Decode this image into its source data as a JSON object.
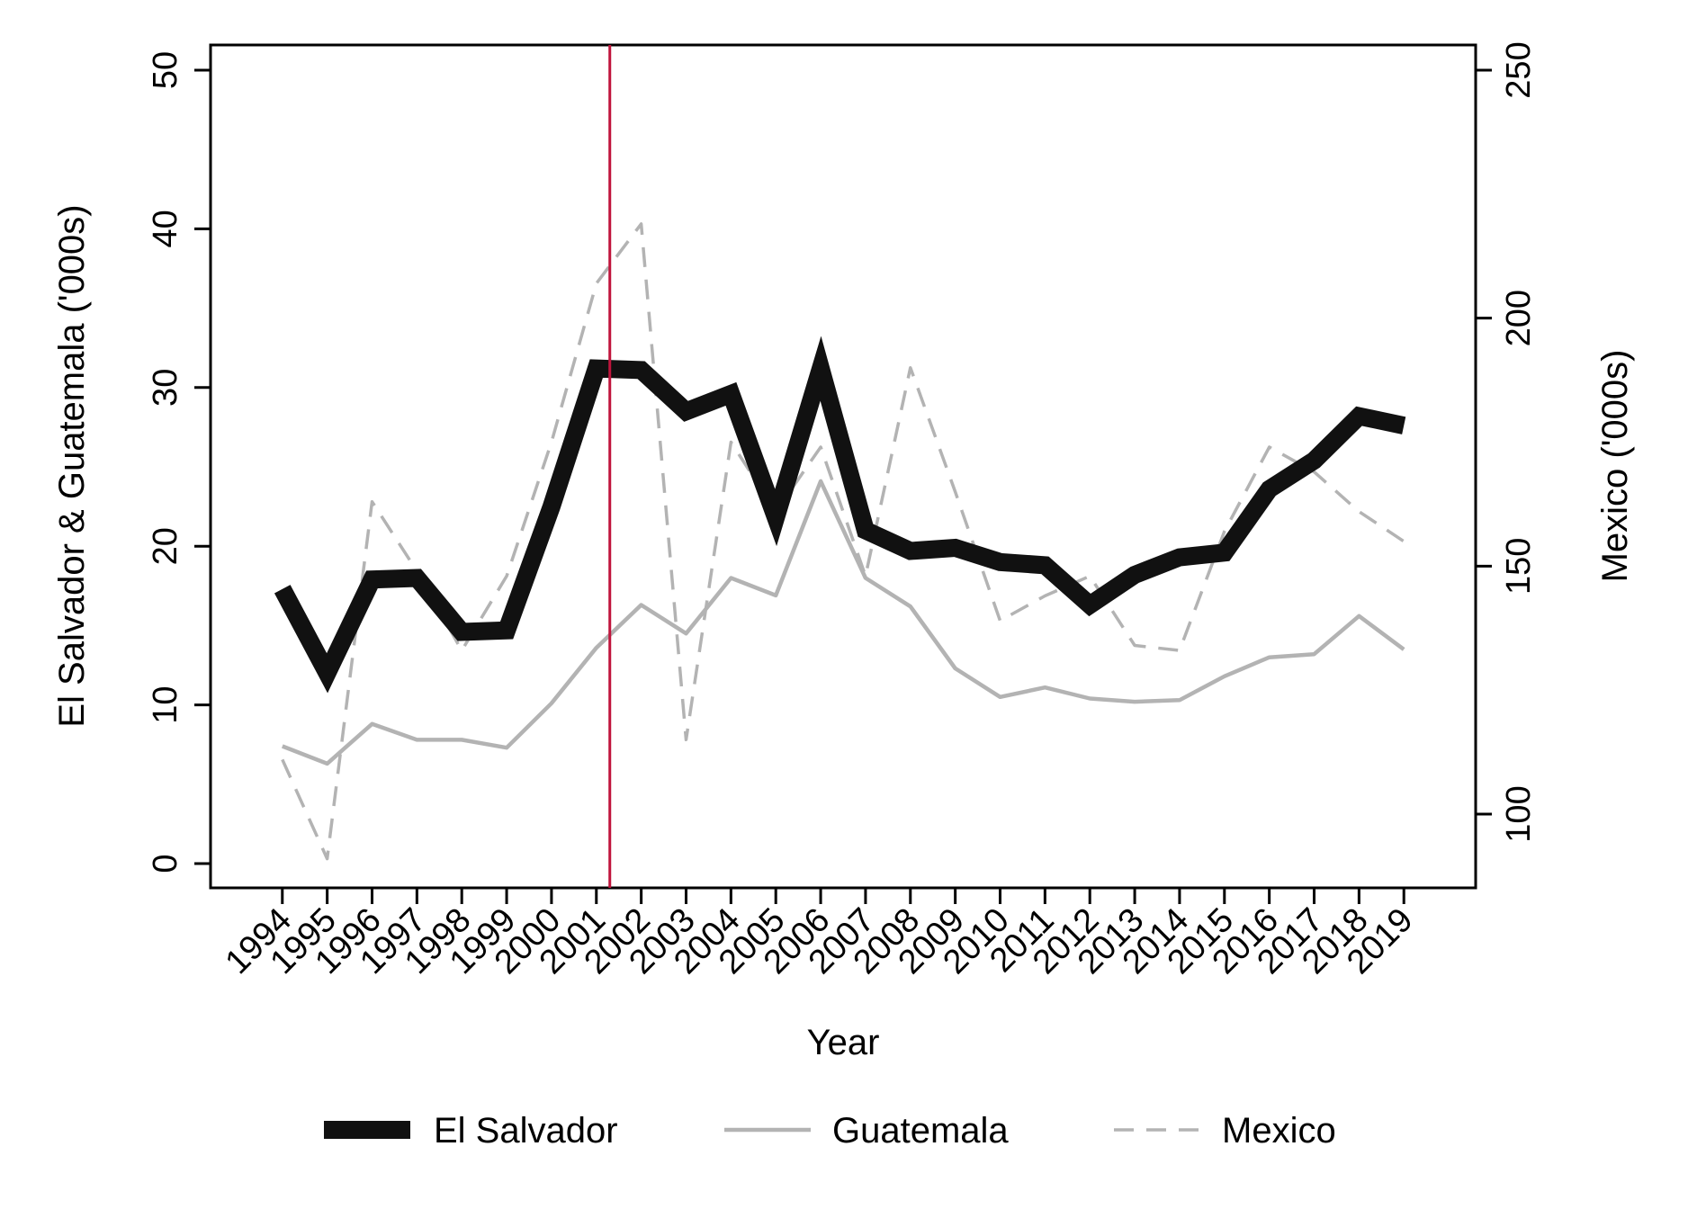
{
  "chart_data": {
    "type": "line",
    "xlabel": "Year",
    "ylabel_left": "El Salvador & Guatemala ('000s)",
    "ylabel_right": "Mexico ('000s)",
    "x": [
      1994,
      1995,
      1996,
      1997,
      1998,
      1999,
      2000,
      2001,
      2002,
      2003,
      2004,
      2005,
      2006,
      2007,
      2008,
      2009,
      2010,
      2011,
      2012,
      2013,
      2014,
      2015,
      2016,
      2017,
      2018,
      2019
    ],
    "x_tick_labels": [
      "1994",
      "1995",
      "1996",
      "1997",
      "1998",
      "1999",
      "2000",
      "2001",
      "2002",
      "2003",
      "2004",
      "2005",
      "2006",
      "2007",
      "2008",
      "2009",
      "2010",
      "2011",
      "2012",
      "2013",
      "2014",
      "2015",
      "2016",
      "2017",
      "2018",
      "2019"
    ],
    "ylim_left": [
      0,
      50
    ],
    "yticks_left": [
      0,
      10,
      20,
      30,
      40,
      50
    ],
    "ylim_right": [
      90,
      250
    ],
    "yticks_right": [
      100,
      150,
      200,
      250
    ],
    "xlim": [
      1992.4,
      2020.6
    ],
    "vertical_line": {
      "x": 2001.3,
      "color": "#c0143c"
    },
    "grid": false,
    "legend_position": "bottom",
    "series": [
      {
        "name": "El Salvador",
        "axis": "left",
        "color": "#111111",
        "style": "solid-thick",
        "values": [
          17.3,
          12.0,
          17.9,
          18.0,
          14.6,
          14.7,
          22.5,
          31.2,
          31.1,
          28.5,
          29.6,
          21.8,
          31.2,
          21.0,
          19.7,
          19.9,
          19.0,
          18.8,
          16.3,
          18.2,
          19.3,
          19.6,
          23.6,
          25.4,
          28.2,
          27.6
        ]
      },
      {
        "name": "Guatemala",
        "axis": "left",
        "color": "#b3b3b3",
        "style": "solid",
        "values": [
          7.4,
          6.3,
          8.8,
          7.8,
          7.8,
          7.3,
          10.1,
          13.6,
          16.3,
          14.5,
          18.0,
          16.9,
          24.1,
          18.0,
          16.2,
          12.3,
          10.5,
          11.1,
          10.4,
          10.2,
          10.3,
          11.8,
          13.0,
          13.2,
          15.6,
          13.5
        ]
      },
      {
        "name": "Mexico",
        "axis": "right",
        "color": "#b3b3b3",
        "style": "dashed",
        "values": [
          111,
          91,
          163,
          149,
          133,
          148,
          175,
          207,
          219,
          115,
          175,
          161,
          174,
          148,
          190,
          165,
          139,
          144,
          148,
          134,
          133,
          157,
          174,
          169,
          161,
          155
        ]
      }
    ]
  }
}
